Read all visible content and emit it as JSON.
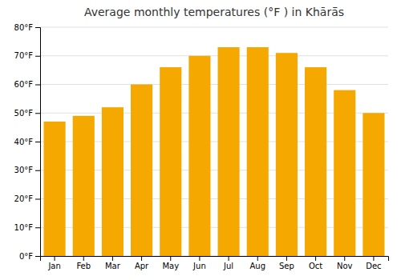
{
  "chart_data": {
    "type": "bar",
    "title": "Average monthly temperatures (°F ) in Khārā̄s",
    "categories": [
      "Jan",
      "Feb",
      "Mar",
      "Apr",
      "May",
      "Jun",
      "Jul",
      "Aug",
      "Sep",
      "Oct",
      "Nov",
      "Dec"
    ],
    "values": [
      47,
      49,
      52,
      60,
      66,
      70,
      73,
      73,
      71,
      66,
      58,
      50
    ],
    "color": "#F5A800",
    "ylim": [
      0,
      80
    ],
    "yticks": [
      {
        "value": 0,
        "label": "0°F"
      },
      {
        "value": 10,
        "label": "10°F"
      },
      {
        "value": 20,
        "label": "20°F"
      },
      {
        "value": 30,
        "label": "30°F"
      },
      {
        "value": 40,
        "label": "40°F"
      },
      {
        "value": 50,
        "label": "50°F"
      },
      {
        "value": 60,
        "label": "60°F"
      },
      {
        "value": 70,
        "label": "70°F"
      },
      {
        "value": 80,
        "label": "80°F"
      }
    ],
    "grid": true
  }
}
